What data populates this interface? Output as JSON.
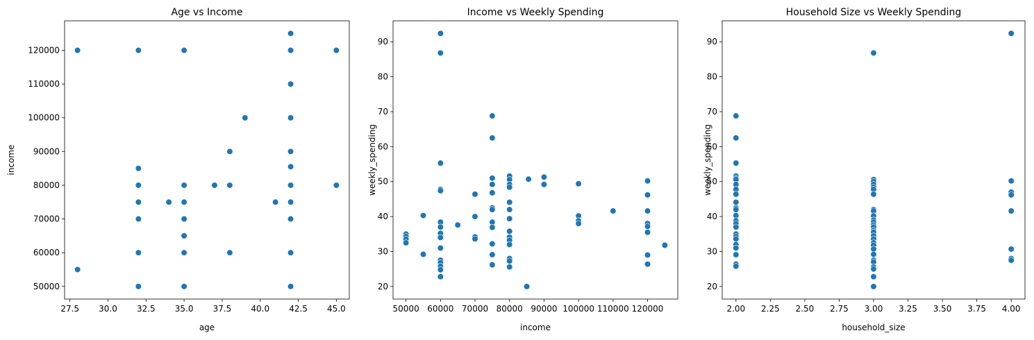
{
  "chart_data": [
    {
      "type": "scatter",
      "title": "Age vs Income",
      "xlabel": "age",
      "ylabel": "income",
      "xlim": [
        27.15,
        45.85
      ],
      "ylim": [
        46250,
        128750
      ],
      "xticks": [
        27.5,
        30.0,
        32.5,
        35.0,
        37.5,
        40.0,
        42.5,
        45.0
      ],
      "xtick_labels": [
        "27.5",
        "30.0",
        "32.5",
        "35.0",
        "37.5",
        "40.0",
        "42.5",
        "45.0"
      ],
      "yticks": [
        50000,
        60000,
        70000,
        80000,
        90000,
        100000,
        110000,
        120000
      ],
      "ytick_labels": [
        "50000",
        "60000",
        "70000",
        "80000",
        "90000",
        "100000",
        "110000",
        "120000"
      ],
      "points": [
        [
          28,
          120000
        ],
        [
          28,
          55000
        ],
        [
          32,
          120000
        ],
        [
          32,
          85000
        ],
        [
          32,
          80000
        ],
        [
          32,
          75000
        ],
        [
          32,
          70000
        ],
        [
          32,
          60000
        ],
        [
          32,
          50000
        ],
        [
          34,
          75000
        ],
        [
          35,
          120000
        ],
        [
          35,
          80000
        ],
        [
          35,
          75000
        ],
        [
          35,
          70000
        ],
        [
          35,
          65000
        ],
        [
          35,
          60000
        ],
        [
          35,
          50000
        ],
        [
          37,
          80000
        ],
        [
          38,
          90000
        ],
        [
          38,
          80000
        ],
        [
          38,
          60000
        ],
        [
          39,
          100000
        ],
        [
          41,
          75000
        ],
        [
          42,
          125000
        ],
        [
          42,
          120000
        ],
        [
          42,
          110000
        ],
        [
          42,
          100000
        ],
        [
          42,
          90000
        ],
        [
          42,
          85500
        ],
        [
          42,
          80000
        ],
        [
          42,
          75000
        ],
        [
          42,
          70000
        ],
        [
          42,
          60000
        ],
        [
          42,
          50000
        ],
        [
          45,
          120000
        ],
        [
          45,
          80000
        ]
      ]
    },
    {
      "type": "scatter",
      "title": "Income vs Weekly Spending",
      "xlabel": "income",
      "ylabel": "weekly_spending",
      "xlim": [
        46250,
        128750
      ],
      "ylim": [
        16.4,
        96.0
      ],
      "xticks": [
        50000,
        60000,
        70000,
        80000,
        90000,
        100000,
        110000,
        120000
      ],
      "xtick_labels": [
        "50000",
        "60000",
        "70000",
        "80000",
        "90000",
        "100000",
        "110000",
        "120000"
      ],
      "yticks": [
        20,
        30,
        40,
        50,
        60,
        70,
        80,
        90
      ],
      "ytick_labels": [
        "20",
        "30",
        "40",
        "50",
        "60",
        "70",
        "80",
        "90"
      ],
      "points": [
        [
          50000,
          35.0
        ],
        [
          50000,
          34.3
        ],
        [
          50000,
          33.5
        ],
        [
          50000,
          32.5
        ],
        [
          55000,
          40.3
        ],
        [
          55000,
          29.2
        ],
        [
          60000,
          92.4
        ],
        [
          60000,
          86.8
        ],
        [
          60000,
          55.3
        ],
        [
          60000,
          47.8
        ],
        [
          60000,
          47.4
        ],
        [
          60000,
          38.4
        ],
        [
          60000,
          37.0
        ],
        [
          60000,
          35.2
        ],
        [
          60000,
          34.0
        ],
        [
          60000,
          31.0
        ],
        [
          60000,
          27.5
        ],
        [
          60000,
          26.8
        ],
        [
          60000,
          25.8
        ],
        [
          60000,
          24.8
        ],
        [
          60000,
          22.8
        ],
        [
          65000,
          37.6
        ],
        [
          70000,
          46.4
        ],
        [
          70000,
          40.0
        ],
        [
          70000,
          34.2
        ],
        [
          70000,
          33.6
        ],
        [
          75000,
          68.8
        ],
        [
          75000,
          62.5
        ],
        [
          75000,
          51.0
        ],
        [
          75000,
          49.2
        ],
        [
          75000,
          46.8
        ],
        [
          75000,
          42.5
        ],
        [
          75000,
          42.0
        ],
        [
          75000,
          38.4
        ],
        [
          75000,
          36.9
        ],
        [
          75000,
          32.2
        ],
        [
          75000,
          29.1
        ],
        [
          75000,
          26.2
        ],
        [
          80000,
          51.6
        ],
        [
          80000,
          50.6
        ],
        [
          80000,
          49.2
        ],
        [
          80000,
          48.4
        ],
        [
          80000,
          44.1
        ],
        [
          80000,
          42.0
        ],
        [
          80000,
          39.4
        ],
        [
          80000,
          35.8
        ],
        [
          80000,
          34.1
        ],
        [
          80000,
          33.2
        ],
        [
          80000,
          32.0
        ],
        [
          80000,
          28.0
        ],
        [
          80000,
          27.3
        ],
        [
          80000,
          25.6
        ],
        [
          85000,
          20.0
        ],
        [
          85500,
          50.7
        ],
        [
          90000,
          51.3
        ],
        [
          90000,
          49.2
        ],
        [
          100000,
          49.4
        ],
        [
          100000,
          40.2
        ],
        [
          100000,
          38.8
        ],
        [
          100000,
          38.0
        ],
        [
          110000,
          41.6
        ],
        [
          120000,
          50.2
        ],
        [
          120000,
          46.2
        ],
        [
          120000,
          41.6
        ],
        [
          120000,
          38.0
        ],
        [
          120000,
          37.2
        ],
        [
          120000,
          35.5
        ],
        [
          120000,
          29.0
        ],
        [
          120000,
          26.4
        ],
        [
          125000,
          31.8
        ]
      ]
    },
    {
      "type": "scatter",
      "title": "Household Size vs Weekly Spending",
      "xlabel": "household_size",
      "ylabel": "weekly_spending",
      "xlim": [
        1.9,
        4.1
      ],
      "ylim": [
        16.4,
        96.0
      ],
      "xticks": [
        2.0,
        2.25,
        2.5,
        2.75,
        3.0,
        3.25,
        3.5,
        3.75,
        4.0
      ],
      "xtick_labels": [
        "2.00",
        "2.25",
        "2.50",
        "2.75",
        "3.00",
        "3.25",
        "3.50",
        "3.75",
        "4.00"
      ],
      "yticks": [
        20,
        30,
        40,
        50,
        60,
        70,
        80,
        90
      ],
      "ytick_labels": [
        "20",
        "30",
        "40",
        "50",
        "60",
        "70",
        "80",
        "90"
      ],
      "points": [
        [
          2,
          68.8
        ],
        [
          2,
          62.5
        ],
        [
          2,
          55.3
        ],
        [
          2,
          51.6
        ],
        [
          2,
          51.0
        ],
        [
          2,
          50.6
        ],
        [
          2,
          49.2
        ],
        [
          2,
          47.8
        ],
        [
          2,
          46.4
        ],
        [
          2,
          44.1
        ],
        [
          2,
          42.5
        ],
        [
          2,
          42.0
        ],
        [
          2,
          40.3
        ],
        [
          2,
          38.8
        ],
        [
          2,
          38.0
        ],
        [
          2,
          37.0
        ],
        [
          2,
          35.0
        ],
        [
          2,
          34.3
        ],
        [
          2,
          33.6
        ],
        [
          2,
          32.0
        ],
        [
          2,
          31.0
        ],
        [
          2,
          29.1
        ],
        [
          2,
          26.4
        ],
        [
          2,
          25.8
        ],
        [
          3,
          86.8
        ],
        [
          3,
          50.6
        ],
        [
          3,
          50.0
        ],
        [
          3,
          49.2
        ],
        [
          3,
          48.4
        ],
        [
          3,
          47.8
        ],
        [
          3,
          46.4
        ],
        [
          3,
          42.0
        ],
        [
          3,
          41.6
        ],
        [
          3,
          40.2
        ],
        [
          3,
          39.0
        ],
        [
          3,
          38.4
        ],
        [
          3,
          37.6
        ],
        [
          3,
          37.0
        ],
        [
          3,
          36.0
        ],
        [
          3,
          35.5
        ],
        [
          3,
          34.5
        ],
        [
          3,
          33.6
        ],
        [
          3,
          32.5
        ],
        [
          3,
          31.8
        ],
        [
          3,
          30.7
        ],
        [
          3,
          29.2
        ],
        [
          3,
          27.5
        ],
        [
          3,
          27.0
        ],
        [
          3,
          25.6
        ],
        [
          3,
          25.0
        ],
        [
          3,
          22.8
        ],
        [
          3,
          20.0
        ],
        [
          4,
          92.4
        ],
        [
          4,
          50.2
        ],
        [
          4,
          47.0
        ],
        [
          4,
          46.2
        ],
        [
          4,
          41.6
        ],
        [
          4,
          30.7
        ],
        [
          4,
          28.0
        ],
        [
          4,
          27.5
        ]
      ]
    }
  ]
}
